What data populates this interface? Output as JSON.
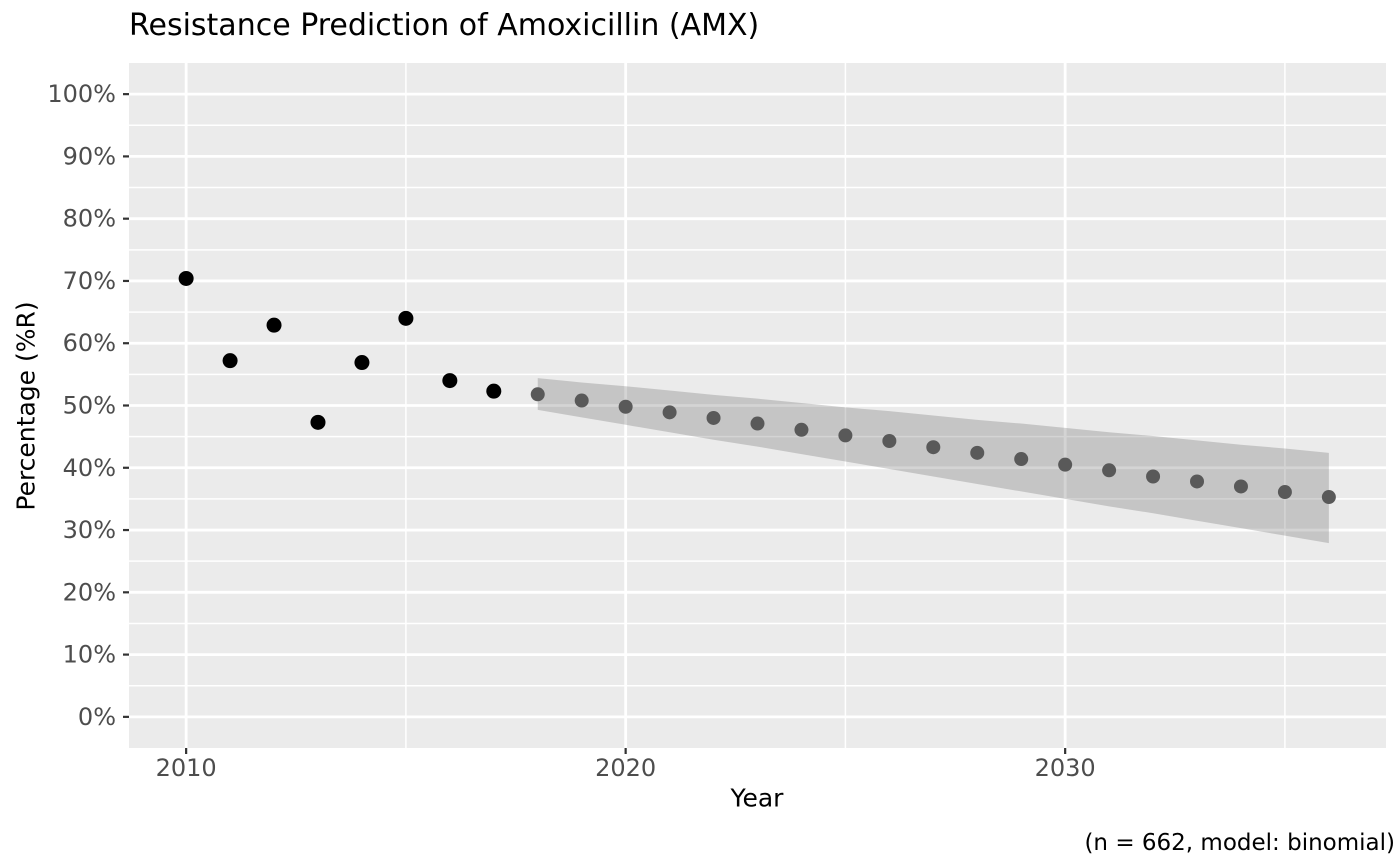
{
  "title": "Resistance Prediction of Amoxicillin (AMX)",
  "caption": "(n = 662, model: binomial)",
  "chart_data": {
    "type": "scatter",
    "title": "Resistance Prediction of Amoxicillin (AMX)",
    "xlabel": "Year",
    "ylabel": "Percentage (%R)",
    "caption": "(n = 662, model: binomial)",
    "xlim": [
      2008.7,
      2037.3
    ],
    "ylim": [
      -5,
      105
    ],
    "grid": true,
    "legend_position": "none",
    "x_major_ticks": {
      "values": [
        2010,
        2020,
        2030
      ],
      "labels": [
        "2010",
        "2020",
        "2030"
      ]
    },
    "x_minor_ticks": [
      2015,
      2025,
      2035
    ],
    "y_major_ticks": {
      "values": [
        0,
        10,
        20,
        30,
        40,
        50,
        60,
        70,
        80,
        90,
        100
      ],
      "labels": [
        "0%",
        "10%",
        "20%",
        "30%",
        "40%",
        "50%",
        "60%",
        "70%",
        "80%",
        "90%",
        "100%"
      ]
    },
    "y_minor_ticks": [
      5,
      15,
      25,
      35,
      45,
      55,
      65,
      75,
      85,
      95
    ],
    "series": [
      {
        "name": "observed",
        "x": [
          2010,
          2011,
          2012,
          2013,
          2014,
          2015,
          2016,
          2017
        ],
        "y": [
          70.4,
          57.2,
          62.9,
          47.3,
          56.9,
          64.0,
          54.0,
          52.3
        ],
        "color": "#000000",
        "marker_radius": 7.5
      },
      {
        "name": "predicted",
        "x": [
          2018,
          2019,
          2020,
          2021,
          2022,
          2023,
          2024,
          2025,
          2026,
          2027,
          2028,
          2029,
          2030,
          2031,
          2032,
          2033,
          2034,
          2035,
          2036
        ],
        "y": [
          51.8,
          50.8,
          49.8,
          48.9,
          48.0,
          47.1,
          46.1,
          45.2,
          44.3,
          43.3,
          42.4,
          41.4,
          40.5,
          39.6,
          38.6,
          37.8,
          37.0,
          36.1,
          35.3
        ],
        "color": "#595959",
        "marker_radius": 7
      }
    ],
    "ribbon": {
      "name": "confidence-interval",
      "x": [
        2018,
        2019,
        2020,
        2021,
        2022,
        2023,
        2024,
        2025,
        2026,
        2027,
        2028,
        2029,
        2030,
        2031,
        2032,
        2033,
        2034,
        2035,
        2036
      ],
      "upper": [
        54.4,
        53.7,
        53.1,
        52.4,
        51.7,
        51.1,
        50.4,
        49.7,
        49.1,
        48.4,
        47.7,
        47.1,
        46.4,
        45.7,
        45.1,
        44.4,
        43.7,
        43.1,
        42.4
      ],
      "lower": [
        49.3,
        48.1,
        46.9,
        45.7,
        44.5,
        43.4,
        42.2,
        41.0,
        39.8,
        38.6,
        37.4,
        36.2,
        35.0,
        33.8,
        32.7,
        31.5,
        30.3,
        29.1,
        27.9
      ],
      "fill": "rgba(100,100,100,0.28)"
    },
    "style": {
      "panel_background": "#ebebeb",
      "grid_color": "#ffffff",
      "tick_mark_color": "#333333",
      "tick_label_color": "#4d4d4d",
      "text_color": "#000000"
    }
  }
}
